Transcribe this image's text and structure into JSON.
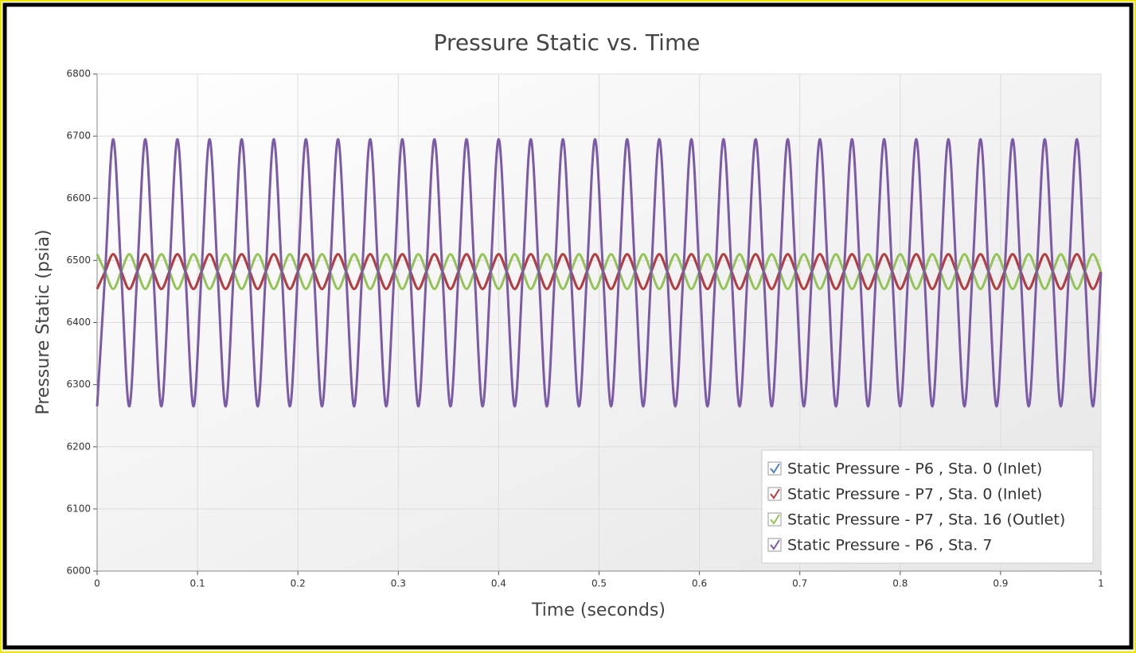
{
  "chart_data": {
    "type": "line",
    "title": "Pressure Static vs. Time",
    "xlabel": "Time (seconds)",
    "ylabel": "Pressure Static (psia)",
    "xlim": [
      0,
      1
    ],
    "ylim": [
      6000,
      6800
    ],
    "xticks": [
      0,
      0.1,
      0.2,
      0.3,
      0.4,
      0.5,
      0.6,
      0.7,
      0.8,
      0.9,
      1
    ],
    "yticks": [
      6000,
      6100,
      6200,
      6300,
      6400,
      6500,
      6600,
      6700,
      6800
    ],
    "grid": true,
    "legend": "lower right",
    "x": [
      0,
      0.008,
      0.016,
      0.024,
      0.032,
      0.04,
      0.048,
      0.056,
      0.064,
      0.072,
      0.08,
      0.088,
      0.096,
      0.104,
      0.112,
      0.12,
      0.128,
      0.136,
      0.144,
      0.152,
      0.16,
      0.168,
      0.176,
      0.184,
      0.192,
      0.2,
      0.208,
      0.216,
      0.224,
      0.232,
      0.24,
      0.248,
      0.256,
      0.264,
      0.272,
      0.28,
      0.288,
      0.296,
      0.304,
      0.312,
      0.32,
      0.328,
      0.336,
      0.344,
      0.352,
      0.36,
      0.368,
      0.376,
      0.384,
      0.392,
      0.4,
      0.408,
      0.416,
      0.424,
      0.432,
      0.44,
      0.448,
      0.456,
      0.464,
      0.472,
      0.48,
      0.488,
      0.496,
      0.504,
      0.512,
      0.52,
      0.528,
      0.536,
      0.544,
      0.552,
      0.56,
      0.568,
      0.576,
      0.584,
      0.592,
      0.6,
      0.608,
      0.616,
      0.624,
      0.632,
      0.64,
      0.648,
      0.656,
      0.664,
      0.672,
      0.68,
      0.688,
      0.696,
      0.704,
      0.712,
      0.72,
      0.728,
      0.736,
      0.744,
      0.752,
      0.76,
      0.768,
      0.776,
      0.784,
      0.792,
      0.8,
      0.808,
      0.816,
      0.824,
      0.832,
      0.84,
      0.848,
      0.856,
      0.864,
      0.872,
      0.88,
      0.888,
      0.896,
      0.904,
      0.912,
      0.92,
      0.928,
      0.936,
      0.944,
      0.952,
      0.96,
      0.968,
      0.976,
      0.984,
      0.992,
      1
    ],
    "series": [
      {
        "name": "Static Pressure - P6 , Sta. 0 (Inlet)",
        "color": "#4f81bd",
        "values": [
          6454,
          6482,
          6510,
          6482,
          6454,
          6482,
          6510,
          6482,
          6454,
          6482,
          6510,
          6482,
          6454,
          6482,
          6510,
          6482,
          6454,
          6482,
          6510,
          6482,
          6454,
          6482,
          6510,
          6482,
          6454,
          6482,
          6510,
          6482,
          6454,
          6482,
          6510,
          6482,
          6454,
          6482,
          6510,
          6482,
          6454,
          6482,
          6510,
          6482,
          6454,
          6482,
          6510,
          6482,
          6454,
          6482,
          6510,
          6482,
          6454,
          6482,
          6510,
          6482,
          6454,
          6482,
          6510,
          6482,
          6454,
          6482,
          6510,
          6482,
          6454,
          6482,
          6510,
          6482,
          6454,
          6482,
          6510,
          6482,
          6454,
          6482,
          6510,
          6482,
          6454,
          6482,
          6510,
          6482,
          6454,
          6482,
          6510,
          6482,
          6454,
          6482,
          6510,
          6482,
          6454,
          6482,
          6510,
          6482,
          6454,
          6482,
          6510,
          6482,
          6454,
          6482,
          6510,
          6482,
          6454,
          6482,
          6510,
          6482,
          6454,
          6482,
          6510,
          6482,
          6454,
          6482,
          6510,
          6482,
          6454,
          6482,
          6510,
          6482,
          6454,
          6482,
          6510,
          6482,
          6454,
          6482,
          6510,
          6482,
          6454,
          6482,
          6510,
          6482,
          6454,
          6482
        ]
      },
      {
        "name": "Static Pressure - P7 , Sta. 0 (Inlet)",
        "color": "#b83c3c",
        "values": [
          6454,
          6482,
          6510,
          6482,
          6454,
          6482,
          6510,
          6482,
          6454,
          6482,
          6510,
          6482,
          6454,
          6482,
          6510,
          6482,
          6454,
          6482,
          6510,
          6482,
          6454,
          6482,
          6510,
          6482,
          6454,
          6482,
          6510,
          6482,
          6454,
          6482,
          6510,
          6482,
          6454,
          6482,
          6510,
          6482,
          6454,
          6482,
          6510,
          6482,
          6454,
          6482,
          6510,
          6482,
          6454,
          6482,
          6510,
          6482,
          6454,
          6482,
          6510,
          6482,
          6454,
          6482,
          6510,
          6482,
          6454,
          6482,
          6510,
          6482,
          6454,
          6482,
          6510,
          6482,
          6454,
          6482,
          6510,
          6482,
          6454,
          6482,
          6510,
          6482,
          6454,
          6482,
          6510,
          6482,
          6454,
          6482,
          6510,
          6482,
          6454,
          6482,
          6510,
          6482,
          6454,
          6482,
          6510,
          6482,
          6454,
          6482,
          6510,
          6482,
          6454,
          6482,
          6510,
          6482,
          6454,
          6482,
          6510,
          6482,
          6454,
          6482,
          6510,
          6482,
          6454,
          6482,
          6510,
          6482,
          6454,
          6482,
          6510,
          6482,
          6454,
          6482,
          6510,
          6482,
          6454,
          6482,
          6510,
          6482,
          6454,
          6482,
          6510,
          6482,
          6454,
          6482
        ]
      },
      {
        "name": "Static Pressure - P7 , Sta. 16 (Outlet)",
        "color": "#92c353",
        "values": [
          6510,
          6482,
          6454,
          6482,
          6510,
          6482,
          6454,
          6482,
          6510,
          6482,
          6454,
          6482,
          6510,
          6482,
          6454,
          6482,
          6510,
          6482,
          6454,
          6482,
          6510,
          6482,
          6454,
          6482,
          6510,
          6482,
          6454,
          6482,
          6510,
          6482,
          6454,
          6482,
          6510,
          6482,
          6454,
          6482,
          6510,
          6482,
          6454,
          6482,
          6510,
          6482,
          6454,
          6482,
          6510,
          6482,
          6454,
          6482,
          6510,
          6482,
          6454,
          6482,
          6510,
          6482,
          6454,
          6482,
          6510,
          6482,
          6454,
          6482,
          6510,
          6482,
          6454,
          6482,
          6510,
          6482,
          6454,
          6482,
          6510,
          6482,
          6454,
          6482,
          6510,
          6482,
          6454,
          6482,
          6510,
          6482,
          6454,
          6482,
          6510,
          6482,
          6454,
          6482,
          6510,
          6482,
          6454,
          6482,
          6510,
          6482,
          6454,
          6482,
          6510,
          6482,
          6454,
          6482,
          6510,
          6482,
          6454,
          6482,
          6510,
          6482,
          6454,
          6482,
          6510,
          6482,
          6454,
          6482,
          6510,
          6482,
          6454,
          6482,
          6510,
          6482,
          6454,
          6482,
          6510,
          6482,
          6454,
          6482,
          6510,
          6482,
          6454,
          6482,
          6510,
          6482
        ]
      },
      {
        "name": "Static Pressure - P6 , Sta. 7",
        "color": "#7b5aa6",
        "values": [
          6265,
          6480,
          6695,
          6480,
          6265,
          6480,
          6695,
          6480,
          6265,
          6480,
          6695,
          6480,
          6265,
          6480,
          6695,
          6480,
          6265,
          6480,
          6695,
          6480,
          6265,
          6480,
          6695,
          6480,
          6265,
          6480,
          6695,
          6480,
          6265,
          6480,
          6695,
          6480,
          6265,
          6480,
          6695,
          6480,
          6265,
          6480,
          6695,
          6480,
          6265,
          6480,
          6695,
          6480,
          6265,
          6480,
          6695,
          6480,
          6265,
          6480,
          6695,
          6480,
          6265,
          6480,
          6695,
          6480,
          6265,
          6480,
          6695,
          6480,
          6265,
          6480,
          6695,
          6480,
          6265,
          6480,
          6695,
          6480,
          6265,
          6480,
          6695,
          6480,
          6265,
          6480,
          6695,
          6480,
          6265,
          6480,
          6695,
          6480,
          6265,
          6480,
          6695,
          6480,
          6265,
          6480,
          6695,
          6480,
          6265,
          6480,
          6695,
          6480,
          6265,
          6480,
          6695,
          6480,
          6265,
          6480,
          6695,
          6480,
          6265,
          6480,
          6695,
          6480,
          6265,
          6480,
          6695,
          6480,
          6265,
          6480,
          6695,
          6480,
          6265,
          6480,
          6695,
          6480,
          6265,
          6480,
          6695,
          6480,
          6265,
          6480,
          6695,
          6480,
          6265,
          6480
        ]
      }
    ]
  }
}
